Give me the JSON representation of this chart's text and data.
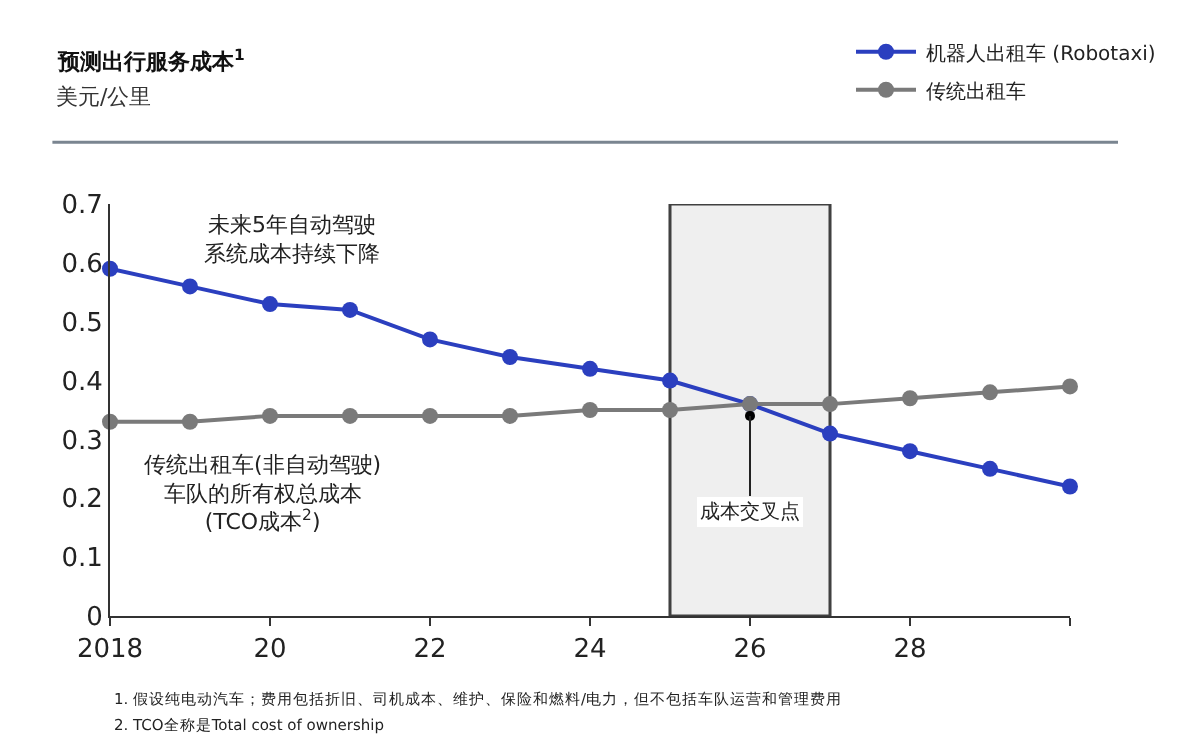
{
  "chart_data": {
    "type": "line",
    "title": "预测出行服务成本$^{1}$",
    "subtitle": "美元/公里",
    "x": [
      2018,
      2019,
      2020,
      2021,
      2022,
      2023,
      2024,
      2025,
      2026,
      2027,
      2028,
      2029,
      2030
    ],
    "series": [
      {
        "name": "机器人出租车 (Robotaxi)",
        "color": "#2b3fbf",
        "values": [
          0.59,
          0.56,
          0.53,
          0.52,
          0.47,
          0.44,
          0.42,
          0.4,
          0.36,
          0.31,
          0.28,
          0.25,
          0.22
        ]
      },
      {
        "name": "传统出租车",
        "color": "#7a7a7a",
        "values": [
          0.33,
          0.33,
          0.34,
          0.34,
          0.34,
          0.34,
          0.35,
          0.35,
          0.36,
          0.36,
          0.37,
          0.38,
          0.39
        ]
      }
    ],
    "xlim": [
      2018,
      2030
    ],
    "xticks": [
      2018,
      {
        "value": 2020,
        "label": "20"
      },
      {
        "value": 2022,
        "label": "22"
      },
      {
        "value": 2024,
        "label": "24"
      },
      {
        "value": 2026,
        "label": "26"
      },
      {
        "value": 2028,
        "label": "28"
      },
      {
        "value": 2030,
        "label": null
      }
    ],
    "ylim": [
      0,
      0.7
    ],
    "yticks": [
      0,
      0.1,
      0.2,
      0.3,
      0.4,
      0.5,
      0.6,
      0.7
    ],
    "bands": [
      {
        "axis": "x",
        "from": 2025,
        "to": 2027,
        "label": null,
        "color": "#404040"
      }
    ],
    "annotations": [
      "未来5年自动驾驶系统成本持续下降",
      "传统出租车(非自动驾驶)车队的所有权总成本(TCO成本$^{2}$)",
      {
        "text": "成本交叉点",
        "x": 2026,
        "y": 0.34
      },
      "1. 假设纯电动汽车；费用包括折旧、司机成本、维护、保险和燃料/电力，但不包括车队运营和管理费用",
      "2. TCO全称是Total cost of ownership"
    ],
    "grid": false,
    "legend": "top right",
    "marker": "circle",
    "line_style": "solid"
  }
}
